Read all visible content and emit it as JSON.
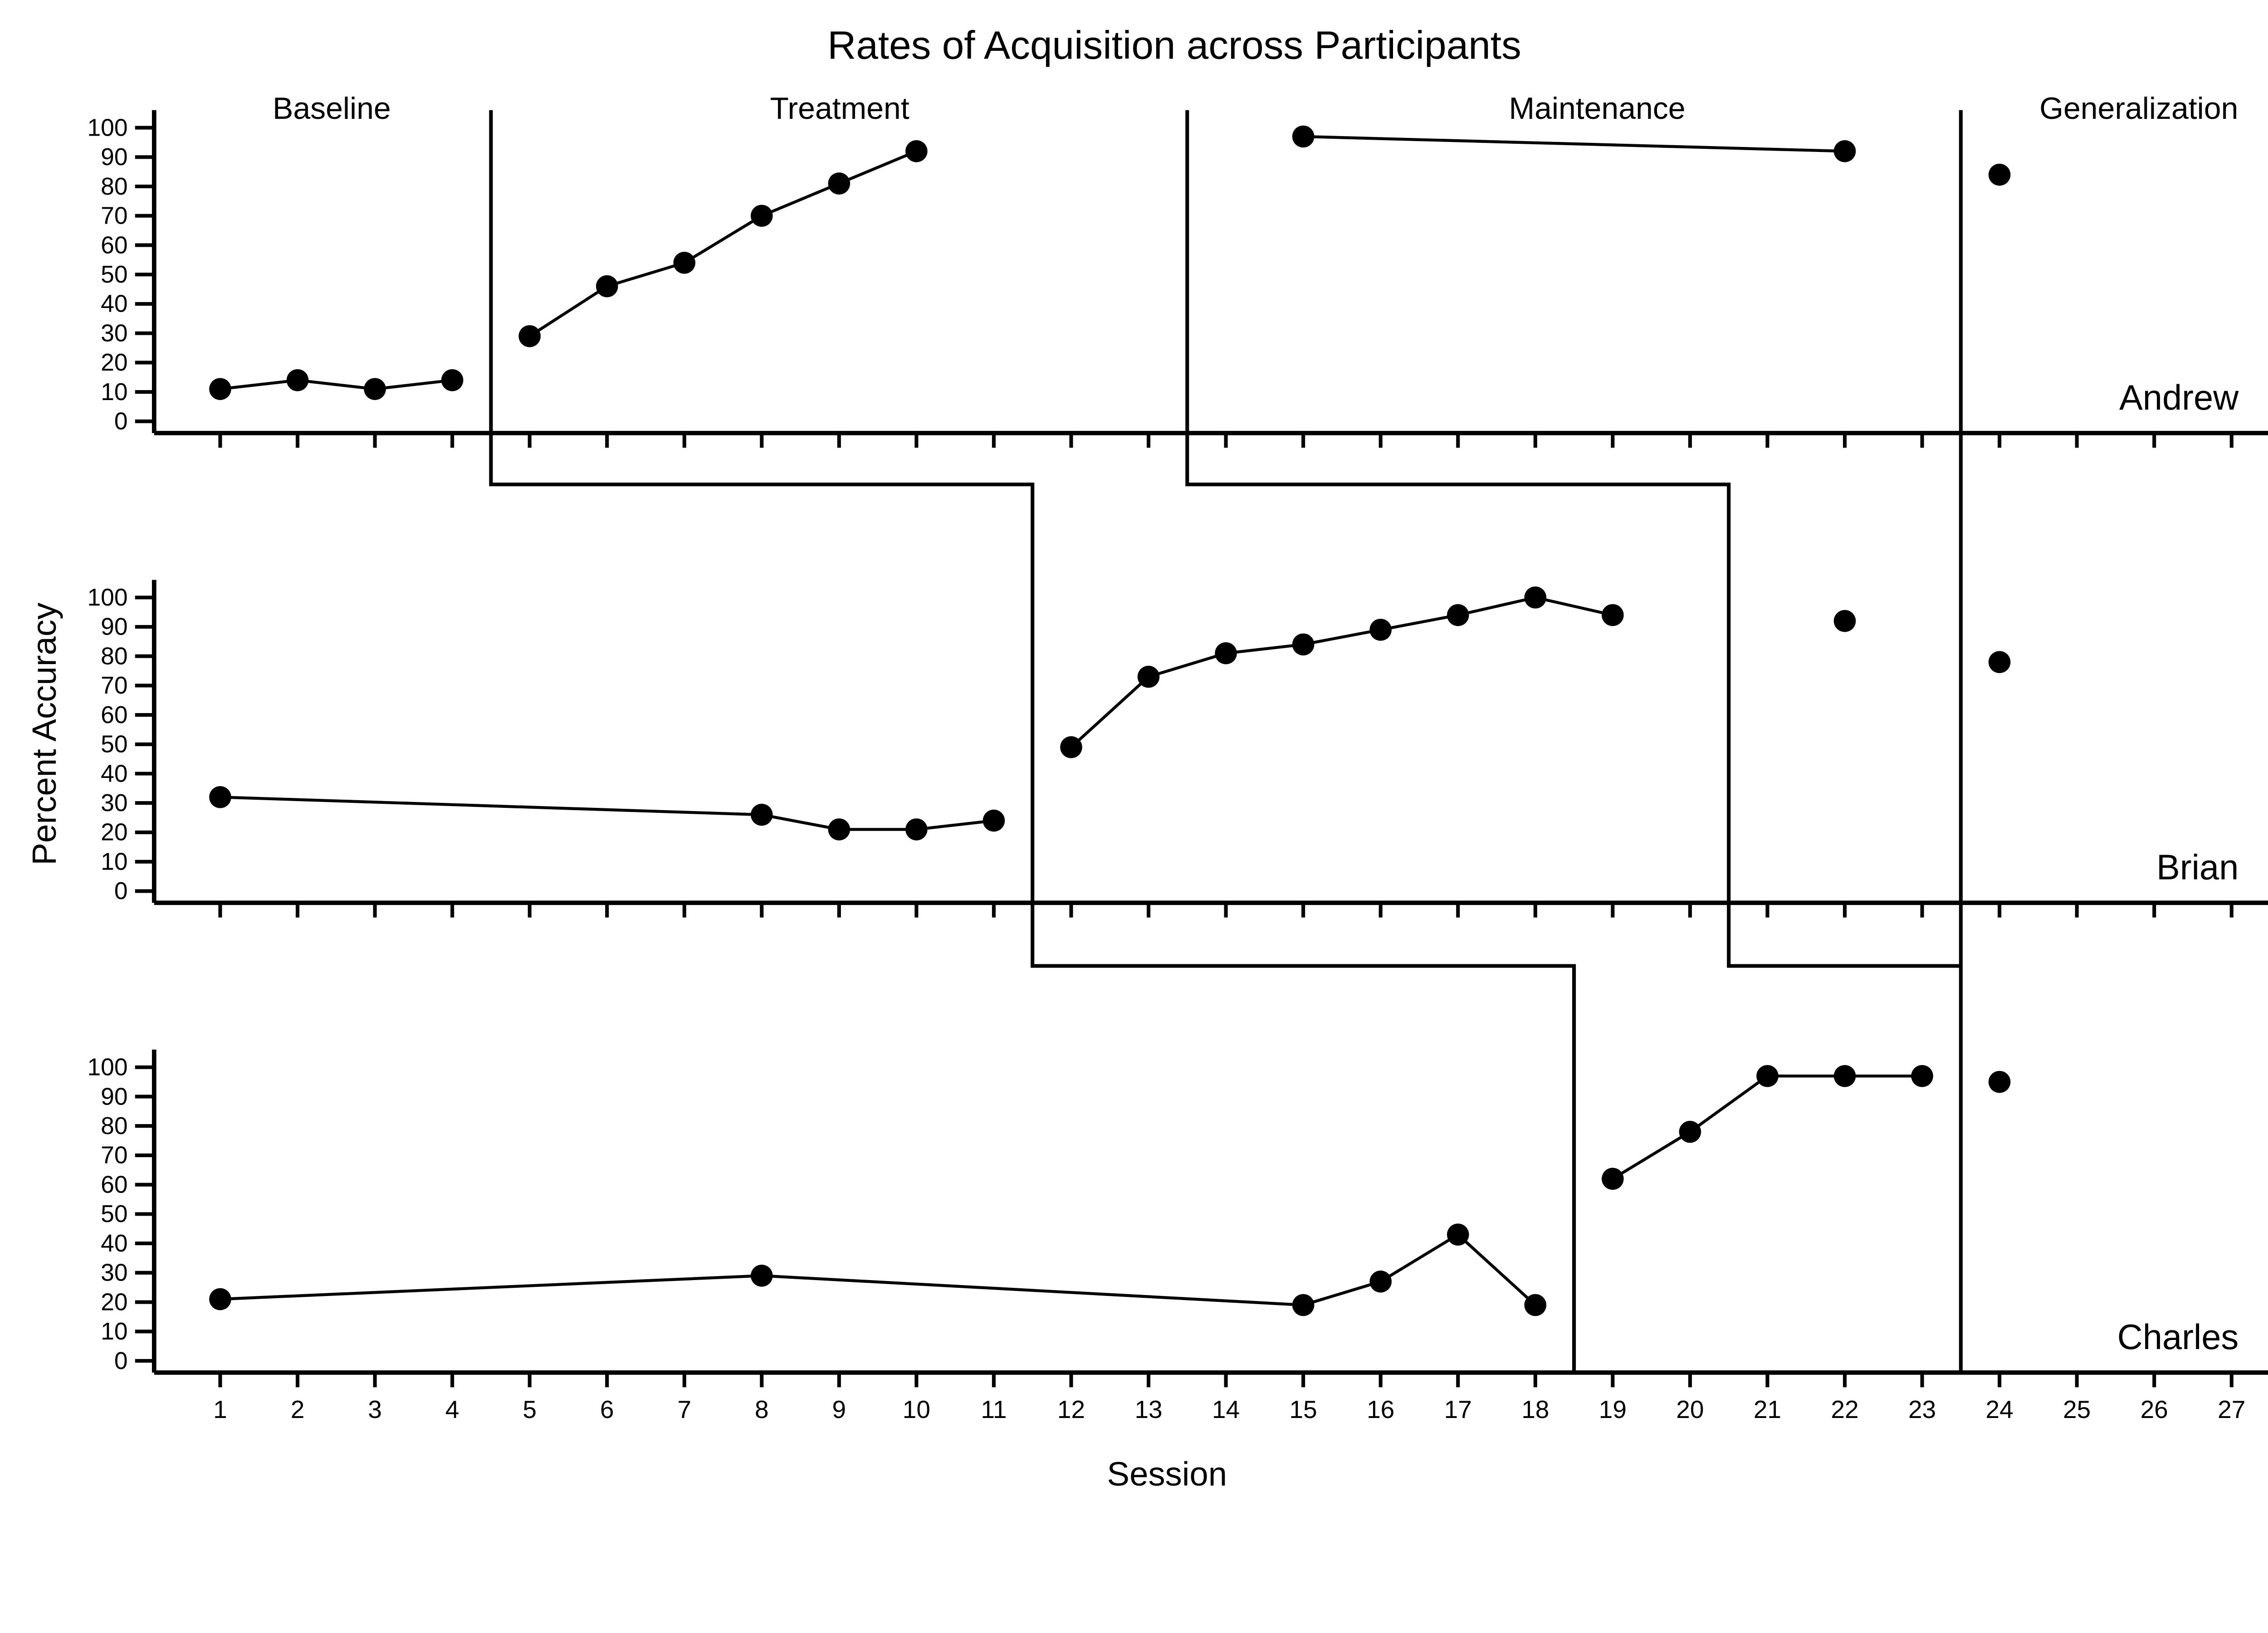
{
  "title": "Rates of Acquisition across Participants",
  "phase_labels": [
    {
      "label": "Baseline",
      "session": 2.45
    },
    {
      "label": "Treatment",
      "session": 9.0
    },
    {
      "label": "Maintenance",
      "session": 18.8
    },
    {
      "label": "Generalization",
      "session": 25.8
    }
  ],
  "chart_data": {
    "type": "line",
    "design": "multiple-baseline-across-participants",
    "title": "Rates of Acquisition across Participants",
    "xlabel": "Session",
    "ylabel": "Percent Accuracy",
    "x_ticks": [
      1,
      2,
      3,
      4,
      5,
      6,
      7,
      8,
      9,
      10,
      11,
      12,
      13,
      14,
      15,
      16,
      17,
      18,
      19,
      20,
      21,
      22,
      23,
      24,
      25,
      26,
      27
    ],
    "xlim": [
      1,
      27
    ],
    "y_ticks": [
      0,
      10,
      20,
      30,
      40,
      50,
      60,
      70,
      80,
      90,
      100
    ],
    "ylim": [
      0,
      100
    ],
    "grid": false,
    "legend": "none",
    "marker": "filled-circle",
    "color": "#000000",
    "panels": [
      {
        "participant": "Andrew",
        "phases": [
          {
            "name": "Baseline",
            "points": [
              [
                1,
                11
              ],
              [
                2,
                14
              ],
              [
                3,
                11
              ],
              [
                4,
                14
              ]
            ]
          },
          {
            "name": "Treatment",
            "points": [
              [
                5,
                29
              ],
              [
                6,
                46
              ],
              [
                7,
                54
              ],
              [
                8,
                70
              ],
              [
                9,
                81
              ],
              [
                10,
                92
              ]
            ]
          },
          {
            "name": "Maintenance",
            "points": [
              [
                15,
                97
              ],
              [
                22,
                92
              ]
            ]
          },
          {
            "name": "Generalization",
            "points": [
              [
                24,
                84
              ]
            ]
          }
        ]
      },
      {
        "participant": "Brian",
        "phases": [
          {
            "name": "Baseline",
            "points": [
              [
                1,
                32
              ],
              [
                8,
                26
              ],
              [
                9,
                21
              ],
              [
                10,
                21
              ],
              [
                11,
                24
              ]
            ]
          },
          {
            "name": "Treatment",
            "points": [
              [
                12,
                49
              ],
              [
                13,
                73
              ],
              [
                14,
                81
              ],
              [
                15,
                84
              ],
              [
                16,
                89
              ],
              [
                17,
                94
              ],
              [
                18,
                100
              ],
              [
                19,
                94
              ]
            ]
          },
          {
            "name": "Maintenance",
            "points": [
              [
                22,
                92
              ]
            ]
          },
          {
            "name": "Generalization",
            "points": [
              [
                24,
                78
              ]
            ]
          }
        ]
      },
      {
        "participant": "Charles",
        "phases": [
          {
            "name": "Baseline",
            "points": [
              [
                1,
                21
              ],
              [
                8,
                29
              ],
              [
                15,
                19
              ],
              [
                16,
                27
              ],
              [
                17,
                43
              ],
              [
                18,
                19
              ]
            ]
          },
          {
            "name": "Treatment",
            "points": [
              [
                19,
                62
              ],
              [
                20,
                78
              ],
              [
                21,
                97
              ],
              [
                22,
                97
              ],
              [
                23,
                97
              ]
            ]
          },
          {
            "name": "Generalization",
            "points": [
              [
                24,
                95
              ]
            ]
          }
        ]
      }
    ],
    "phase_change_lines": {
      "baseline_to_treatment_x_per_panel": [
        4.5,
        11.5,
        18.5
      ],
      "treatment_to_maintenance_x_per_panel": [
        13.5,
        20.5
      ],
      "treatment_to_maintenance_end_x": 23.5,
      "generalization_x_all_panels": 23.5
    }
  }
}
